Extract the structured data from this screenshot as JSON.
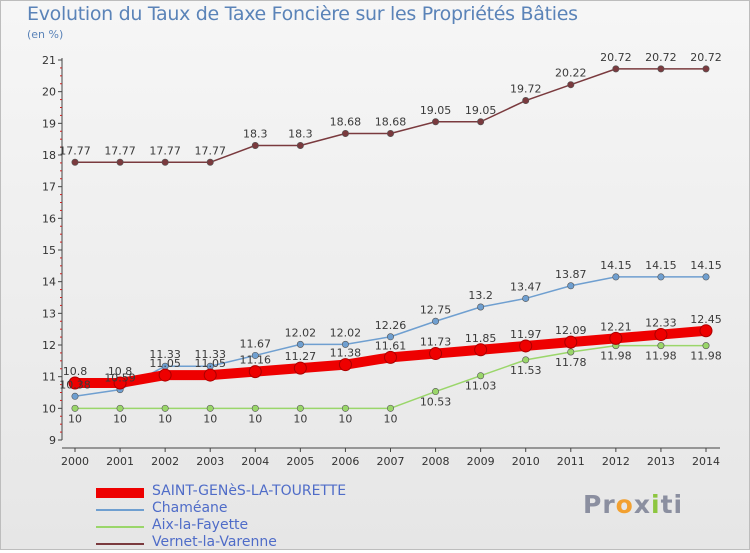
{
  "title": "Evolution du Taux de Taxe Foncière sur les Propriétés Bâties",
  "unit": "(en %)",
  "logo": {
    "text": [
      "Pr",
      "o",
      "x",
      "i",
      "ti"
    ],
    "colors": [
      "#8b8fa0",
      "#f2a030",
      "#8b8fa0",
      "#8dc63f",
      "#8b8fa0"
    ]
  },
  "chart_data": {
    "type": "line",
    "title": "Evolution du Taux de Taxe Foncière sur les Propriétés Bâties",
    "ylabel": "(en %)",
    "xlabel": "",
    "ylim": [
      9,
      21
    ],
    "yticks": [
      9,
      10,
      11,
      12,
      13,
      14,
      15,
      16,
      17,
      18,
      19,
      20,
      21
    ],
    "x": [
      2000,
      2001,
      2002,
      2003,
      2004,
      2005,
      2006,
      2007,
      2008,
      2009,
      2010,
      2011,
      2012,
      2013,
      2014
    ],
    "grid": false,
    "legend": "bottom-left",
    "series": [
      {
        "name": "SAINT-GENèS-LA-TOURETTE",
        "color": "#ee0000",
        "values": [
          10.8,
          10.8,
          11.05,
          11.05,
          11.16,
          11.27,
          11.38,
          11.61,
          11.73,
          11.85,
          11.97,
          12.09,
          12.21,
          12.33,
          12.45
        ],
        "labels": [
          "10.8",
          "10.8",
          "11.05",
          "11.05",
          "11.16",
          "11.27",
          "11.38",
          "11.61",
          "11.73",
          "11.85",
          "11.97",
          "12.09",
          "12.21",
          "12.33",
          "12.45"
        ]
      },
      {
        "name": "Chaméane",
        "color": "#6f9fd0",
        "values": [
          10.38,
          10.59,
          11.33,
          11.33,
          11.67,
          12.02,
          12.02,
          12.26,
          12.75,
          13.2,
          13.47,
          13.87,
          14.15,
          14.15,
          14.15
        ],
        "labels": [
          "10.38",
          "10.59",
          "11.33",
          "11.33",
          "11.67",
          "12.02",
          "12.02",
          "12.26",
          "12.75",
          "13.2",
          "13.47",
          "13.87",
          "14.15",
          "14.15",
          "14.15"
        ]
      },
      {
        "name": "Aix-la-Fayette",
        "color": "#9ad66a",
        "values": [
          10,
          10,
          10,
          10,
          10,
          10,
          10,
          10,
          10.53,
          11.03,
          11.53,
          11.78,
          11.98,
          11.98,
          11.98
        ],
        "labels": [
          "10",
          "10",
          "10",
          "10",
          "10",
          "10",
          "10",
          "10",
          "10.53",
          "11.03",
          "11.53",
          "11.78",
          "11.98",
          "11.98",
          "11.98"
        ]
      },
      {
        "name": "Vernet-la-Varenne",
        "color": "#7a3a3e",
        "values": [
          17.77,
          17.77,
          17.77,
          17.77,
          18.3,
          18.3,
          18.68,
          18.68,
          19.05,
          19.05,
          19.72,
          20.22,
          20.72,
          20.72,
          20.72
        ],
        "labels": [
          "17.77",
          "17.77",
          "17.77",
          "17.77",
          "18.3",
          "18.3",
          "18.68",
          "18.68",
          "19.05",
          "19.05",
          "19.72",
          "20.22",
          "20.72",
          "20.72",
          "20.72"
        ]
      }
    ]
  }
}
